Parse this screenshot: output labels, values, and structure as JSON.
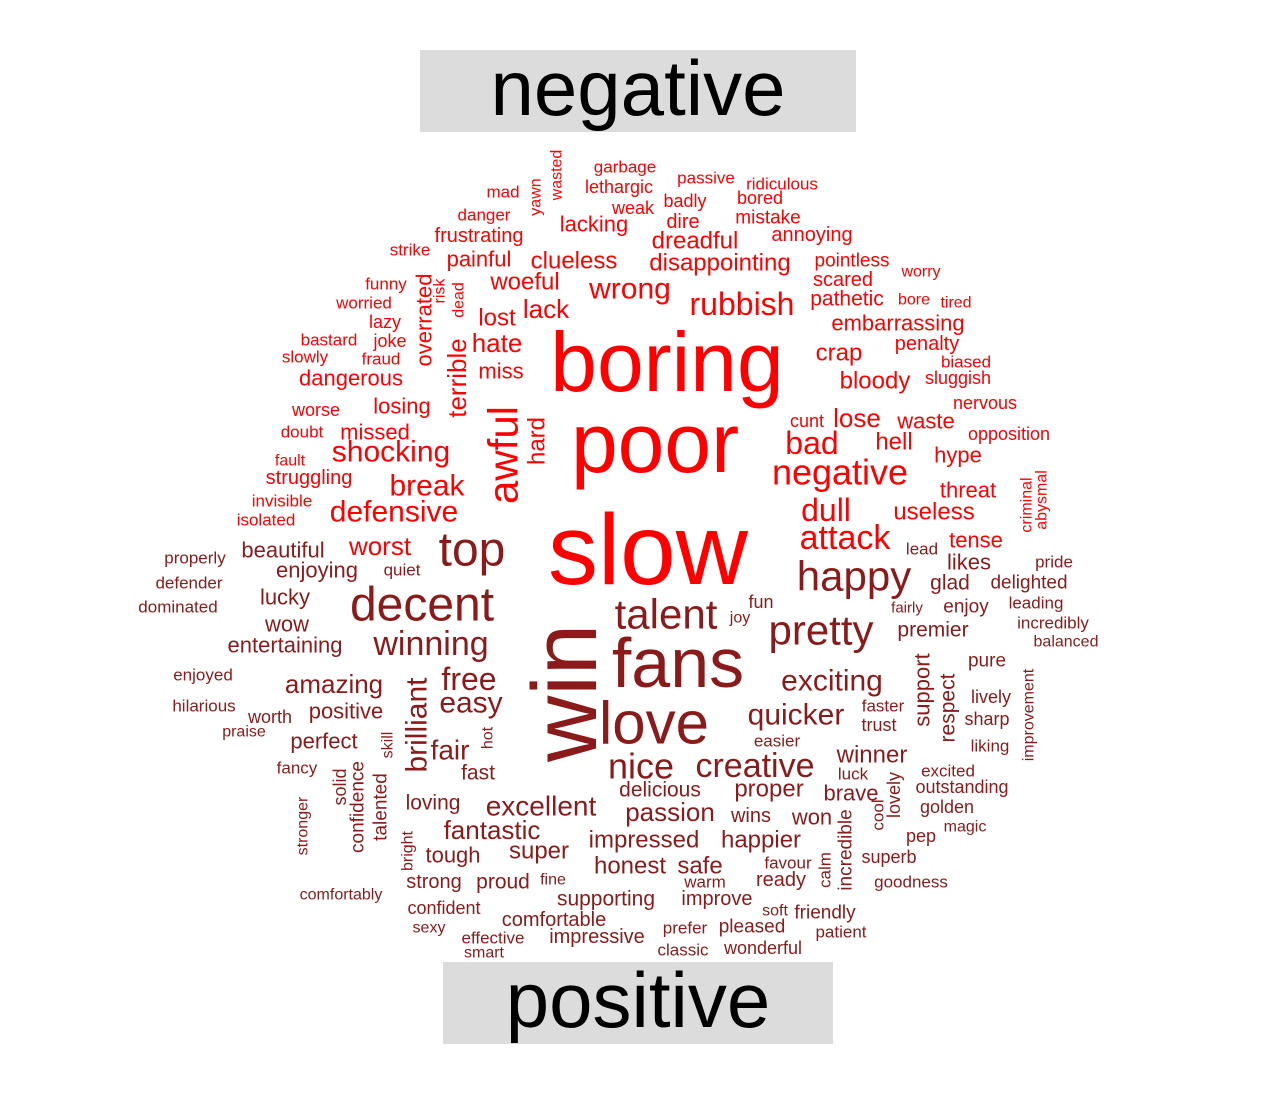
{
  "chart_data": {
    "type": "comparison wordcloud",
    "groups": [
      {
        "name": "negative",
        "color": "#ff0000"
      },
      {
        "name": "positive",
        "color": "#8b1a1a"
      }
    ],
    "words": [
      {
        "text": "boring",
        "group": "negative",
        "size": 84
      },
      {
        "text": "poor",
        "group": "negative",
        "size": 84
      },
      {
        "text": "slow",
        "group": "negative",
        "size": 100
      },
      {
        "text": "awful",
        "group": "negative",
        "size": 42,
        "rotated": true
      },
      {
        "text": "negative",
        "group": "negative",
        "size": 36
      },
      {
        "text": "rubbish",
        "group": "negative",
        "size": 32
      },
      {
        "text": "bad",
        "group": "negative",
        "size": 32
      },
      {
        "text": "dull",
        "group": "negative",
        "size": 32
      },
      {
        "text": "attack",
        "group": "negative",
        "size": 34
      },
      {
        "text": "wrong",
        "group": "negative",
        "size": 30
      },
      {
        "text": "break",
        "group": "negative",
        "size": 30
      },
      {
        "text": "shocking",
        "group": "negative",
        "size": 30
      },
      {
        "text": "defensive",
        "group": "negative",
        "size": 30
      },
      {
        "text": "worst",
        "group": "negative",
        "size": 26
      },
      {
        "text": "terrible",
        "group": "negative",
        "size": 26,
        "rotated": true
      },
      {
        "text": "lack",
        "group": "negative",
        "size": 26
      },
      {
        "text": "hate",
        "group": "negative",
        "size": 26
      },
      {
        "text": "lose",
        "group": "negative",
        "size": 26
      },
      {
        "text": "hell",
        "group": "negative",
        "size": 24
      },
      {
        "text": "useless",
        "group": "negative",
        "size": 24
      },
      {
        "text": "bloody",
        "group": "negative",
        "size": 24
      },
      {
        "text": "crap",
        "group": "negative",
        "size": 24
      },
      {
        "text": "lost",
        "group": "negative",
        "size": 24
      },
      {
        "text": "dreadful",
        "group": "negative",
        "size": 24
      },
      {
        "text": "disappointing",
        "group": "negative",
        "size": 24
      },
      {
        "text": "clueless",
        "group": "negative",
        "size": 24
      },
      {
        "text": "woeful",
        "group": "negative",
        "size": 24
      },
      {
        "text": "hard",
        "group": "negative",
        "size": 24,
        "rotated": true
      },
      {
        "text": "losing",
        "group": "negative",
        "size": 22
      },
      {
        "text": "missed",
        "group": "negative",
        "size": 22
      },
      {
        "text": "miss",
        "group": "negative",
        "size": 22
      },
      {
        "text": "painful",
        "group": "negative",
        "size": 22
      },
      {
        "text": "lacking",
        "group": "negative",
        "size": 22
      },
      {
        "text": "waste",
        "group": "negative",
        "size": 22
      },
      {
        "text": "threat",
        "group": "negative",
        "size": 22
      },
      {
        "text": "hype",
        "group": "negative",
        "size": 22
      },
      {
        "text": "tense",
        "group": "negative",
        "size": 22
      },
      {
        "text": "dangerous",
        "group": "negative",
        "size": 22
      },
      {
        "text": "embarrassing",
        "group": "negative",
        "size": 22
      },
      {
        "text": "overrated",
        "group": "negative",
        "size": 22,
        "rotated": true
      },
      {
        "text": "pathetic",
        "group": "negative",
        "size": 21
      },
      {
        "text": "penalty",
        "group": "negative",
        "size": 20
      },
      {
        "text": "scared",
        "group": "negative",
        "size": 20
      },
      {
        "text": "pointless",
        "group": "negative",
        "size": 19
      },
      {
        "text": "frustrating",
        "group": "negative",
        "size": 20
      },
      {
        "text": "annoying",
        "group": "negative",
        "size": 20
      },
      {
        "text": "mistake",
        "group": "negative",
        "size": 19
      },
      {
        "text": "dire",
        "group": "negative",
        "size": 20
      },
      {
        "text": "struggling",
        "group": "negative",
        "size": 20
      },
      {
        "text": "sluggish",
        "group": "negative",
        "size": 18
      },
      {
        "text": "cunt",
        "group": "negative",
        "size": 18
      },
      {
        "text": "badly",
        "group": "negative",
        "size": 18
      },
      {
        "text": "weak",
        "group": "negative",
        "size": 18
      },
      {
        "text": "bored",
        "group": "negative",
        "size": 18
      },
      {
        "text": "passive",
        "group": "negative",
        "size": 17
      },
      {
        "text": "lethargic",
        "group": "negative",
        "size": 18
      },
      {
        "text": "garbage",
        "group": "negative",
        "size": 17
      },
      {
        "text": "ridiculous",
        "group": "negative",
        "size": 17
      },
      {
        "text": "worse",
        "group": "negative",
        "size": 18
      },
      {
        "text": "lazy",
        "group": "negative",
        "size": 18
      },
      {
        "text": "joke",
        "group": "negative",
        "size": 18
      },
      {
        "text": "danger",
        "group": "negative",
        "size": 17
      },
      {
        "text": "mad",
        "group": "negative",
        "size": 17
      },
      {
        "text": "worry",
        "group": "negative",
        "size": 16
      },
      {
        "text": "bore",
        "group": "negative",
        "size": 16
      },
      {
        "text": "tired",
        "group": "negative",
        "size": 16
      },
      {
        "text": "biased",
        "group": "negative",
        "size": 17
      },
      {
        "text": "nervous",
        "group": "negative",
        "size": 18
      },
      {
        "text": "opposition",
        "group": "negative",
        "size": 18
      },
      {
        "text": "funny",
        "group": "negative",
        "size": 17
      },
      {
        "text": "worried",
        "group": "negative",
        "size": 17
      },
      {
        "text": "bastard",
        "group": "negative",
        "size": 17
      },
      {
        "text": "slowly",
        "group": "negative",
        "size": 17
      },
      {
        "text": "fraud",
        "group": "negative",
        "size": 17
      },
      {
        "text": "doubt",
        "group": "negative",
        "size": 17
      },
      {
        "text": "fault",
        "group": "negative",
        "size": 16
      },
      {
        "text": "invisible",
        "group": "negative",
        "size": 17
      },
      {
        "text": "isolated",
        "group": "negative",
        "size": 17
      },
      {
        "text": "strike",
        "group": "negative",
        "size": 17
      },
      {
        "text": "risk",
        "group": "negative",
        "size": 16,
        "rotated": true
      },
      {
        "text": "dead",
        "group": "negative",
        "size": 16,
        "rotated": true
      },
      {
        "text": "yawn",
        "group": "negative",
        "size": 16,
        "rotated": true
      },
      {
        "text": "wasted",
        "group": "negative",
        "size": 16,
        "rotated": true
      },
      {
        "text": "criminal",
        "group": "negative",
        "size": 16,
        "rotated": true
      },
      {
        "text": "abysmal",
        "group": "negative",
        "size": 16,
        "rotated": true
      },
      {
        "text": "win",
        "group": "positive",
        "size": 92,
        "rotated": true
      },
      {
        "text": "fans",
        "group": "positive",
        "size": 70
      },
      {
        "text": "love",
        "group": "positive",
        "size": 60
      },
      {
        "text": "decent",
        "group": "positive",
        "size": 48
      },
      {
        "text": "top",
        "group": "positive",
        "size": 48
      },
      {
        "text": "happy",
        "group": "positive",
        "size": 42
      },
      {
        "text": "pretty",
        "group": "positive",
        "size": 42
      },
      {
        "text": "talent",
        "group": "positive",
        "size": 42
      },
      {
        "text": "nice",
        "group": "positive",
        "size": 36
      },
      {
        "text": "creative",
        "group": "positive",
        "size": 34
      },
      {
        "text": "winning",
        "group": "positive",
        "size": 34
      },
      {
        "text": "free",
        "group": "positive",
        "size": 32
      },
      {
        "text": "exciting",
        "group": "positive",
        "size": 30
      },
      {
        "text": "quicker",
        "group": "positive",
        "size": 30
      },
      {
        "text": "easy",
        "group": "positive",
        "size": 30
      },
      {
        "text": "brilliant",
        "group": "positive",
        "size": 30,
        "rotated": true
      },
      {
        "text": "excellent",
        "group": "positive",
        "size": 28
      },
      {
        "text": "fair",
        "group": "positive",
        "size": 28
      },
      {
        "text": "passion",
        "group": "positive",
        "size": 26
      },
      {
        "text": "fantastic",
        "group": "positive",
        "size": 26
      },
      {
        "text": "amazing",
        "group": "positive",
        "size": 26
      },
      {
        "text": "impressed",
        "group": "positive",
        "size": 24
      },
      {
        "text": "happier",
        "group": "positive",
        "size": 24
      },
      {
        "text": "proper",
        "group": "positive",
        "size": 24
      },
      {
        "text": "honest",
        "group": "positive",
        "size": 24
      },
      {
        "text": "super",
        "group": "positive",
        "size": 24
      },
      {
        "text": "safe",
        "group": "positive",
        "size": 24
      },
      {
        "text": "winner",
        "group": "positive",
        "size": 24
      },
      {
        "text": "brave",
        "group": "positive",
        "size": 22
      },
      {
        "text": "won",
        "group": "positive",
        "size": 22
      },
      {
        "text": "entertaining",
        "group": "positive",
        "size": 22
      },
      {
        "text": "positive",
        "group": "positive",
        "size": 22
      },
      {
        "text": "perfect",
        "group": "positive",
        "size": 22
      },
      {
        "text": "beautiful",
        "group": "positive",
        "size": 22
      },
      {
        "text": "enjoying",
        "group": "positive",
        "size": 22
      },
      {
        "text": "lucky",
        "group": "positive",
        "size": 22
      },
      {
        "text": "wow",
        "group": "positive",
        "size": 22
      },
      {
        "text": "tough",
        "group": "positive",
        "size": 22
      },
      {
        "text": "proud",
        "group": "positive",
        "size": 21
      },
      {
        "text": "loving",
        "group": "positive",
        "size": 21
      },
      {
        "text": "fast",
        "group": "positive",
        "size": 21
      },
      {
        "text": "supporting",
        "group": "positive",
        "size": 21
      },
      {
        "text": "delicious",
        "group": "positive",
        "size": 21
      },
      {
        "text": "likes",
        "group": "positive",
        "size": 22
      },
      {
        "text": "premier",
        "group": "positive",
        "size": 21
      },
      {
        "text": "glad",
        "group": "positive",
        "size": 21
      },
      {
        "text": "support",
        "group": "positive",
        "size": 22,
        "rotated": true
      },
      {
        "text": "respect",
        "group": "positive",
        "size": 21,
        "rotated": true
      },
      {
        "text": "improve",
        "group": "positive",
        "size": 20
      },
      {
        "text": "impressive",
        "group": "positive",
        "size": 20
      },
      {
        "text": "comfortable",
        "group": "positive",
        "size": 20
      },
      {
        "text": "strong",
        "group": "positive",
        "size": 20
      },
      {
        "text": "confident",
        "group": "positive",
        "size": 18
      },
      {
        "text": "ready",
        "group": "positive",
        "size": 20
      },
      {
        "text": "wins",
        "group": "positive",
        "size": 20
      },
      {
        "text": "pleased",
        "group": "positive",
        "size": 19
      },
      {
        "text": "friendly",
        "group": "positive",
        "size": 19
      },
      {
        "text": "wonderful",
        "group": "positive",
        "size": 18
      },
      {
        "text": "delighted",
        "group": "positive",
        "size": 19
      },
      {
        "text": "enjoy",
        "group": "positive",
        "size": 19
      },
      {
        "text": "pure",
        "group": "positive",
        "size": 19
      },
      {
        "text": "incredible",
        "group": "positive",
        "size": 19,
        "rotated": true
      },
      {
        "text": "solid",
        "group": "positive",
        "size": 18,
        "rotated": true
      },
      {
        "text": "confidence",
        "group": "positive",
        "size": 19,
        "rotated": true
      },
      {
        "text": "talented",
        "group": "positive",
        "size": 19,
        "rotated": true
      },
      {
        "text": "worth",
        "group": "positive",
        "size": 18
      },
      {
        "text": "superb",
        "group": "positive",
        "size": 18
      },
      {
        "text": "lovely",
        "group": "positive",
        "size": 18,
        "rotated": true
      },
      {
        "text": "sharp",
        "group": "positive",
        "size": 18
      },
      {
        "text": "lively",
        "group": "positive",
        "size": 18
      },
      {
        "text": "fun",
        "group": "positive",
        "size": 18
      },
      {
        "text": "faster",
        "group": "positive",
        "size": 17
      },
      {
        "text": "trust",
        "group": "positive",
        "size": 18
      },
      {
        "text": "easier",
        "group": "positive",
        "size": 17
      },
      {
        "text": "excited",
        "group": "positive",
        "size": 17
      },
      {
        "text": "outstanding",
        "group": "positive",
        "size": 18
      },
      {
        "text": "golden",
        "group": "positive",
        "size": 18
      },
      {
        "text": "magic",
        "group": "positive",
        "size": 16
      },
      {
        "text": "pep",
        "group": "positive",
        "size": 18
      },
      {
        "text": "cool",
        "group": "positive",
        "size": 17,
        "rotated": true
      },
      {
        "text": "luck",
        "group": "positive",
        "size": 17
      },
      {
        "text": "favour",
        "group": "positive",
        "size": 17
      },
      {
        "text": "warm",
        "group": "positive",
        "size": 17
      },
      {
        "text": "soft",
        "group": "positive",
        "size": 16
      },
      {
        "text": "prefer",
        "group": "positive",
        "size": 17
      },
      {
        "text": "classic",
        "group": "positive",
        "size": 17
      },
      {
        "text": "effective",
        "group": "positive",
        "size": 17
      },
      {
        "text": "smart",
        "group": "positive",
        "size": 16
      },
      {
        "text": "sexy",
        "group": "positive",
        "size": 16
      },
      {
        "text": "fine",
        "group": "positive",
        "size": 16
      },
      {
        "text": "goodness",
        "group": "positive",
        "size": 17
      },
      {
        "text": "patient",
        "group": "positive",
        "size": 17
      },
      {
        "text": "calm",
        "group": "positive",
        "size": 17,
        "rotated": true
      },
      {
        "text": "bright",
        "group": "positive",
        "size": 16,
        "rotated": true
      },
      {
        "text": "stronger",
        "group": "positive",
        "size": 16,
        "rotated": true
      },
      {
        "text": "comfortably",
        "group": "positive",
        "size": 16
      },
      {
        "text": "fancy",
        "group": "positive",
        "size": 17
      },
      {
        "text": "praise",
        "group": "positive",
        "size": 16
      },
      {
        "text": "hilarious",
        "group": "positive",
        "size": 17
      },
      {
        "text": "enjoyed",
        "group": "positive",
        "size": 17
      },
      {
        "text": "dominated",
        "group": "positive",
        "size": 17
      },
      {
        "text": "defender",
        "group": "positive",
        "size": 17
      },
      {
        "text": "properly",
        "group": "positive",
        "size": 17
      },
      {
        "text": "quiet",
        "group": "positive",
        "size": 17
      },
      {
        "text": "joy",
        "group": "positive",
        "size": 16
      },
      {
        "text": "lead",
        "group": "positive",
        "size": 17
      },
      {
        "text": "fairly",
        "group": "positive",
        "size": 15
      },
      {
        "text": "leading",
        "group": "positive",
        "size": 17
      },
      {
        "text": "pride",
        "group": "positive",
        "size": 17
      },
      {
        "text": "incredibly",
        "group": "positive",
        "size": 17
      },
      {
        "text": "balanced",
        "group": "positive",
        "size": 16
      },
      {
        "text": "liking",
        "group": "positive",
        "size": 17
      },
      {
        "text": "improvement",
        "group": "positive",
        "size": 16,
        "rotated": true
      },
      {
        "text": "hot",
        "group": "positive",
        "size": 16,
        "rotated": true
      },
      {
        "text": "skill",
        "group": "positive",
        "size": 16,
        "rotated": true
      }
    ]
  }
}
